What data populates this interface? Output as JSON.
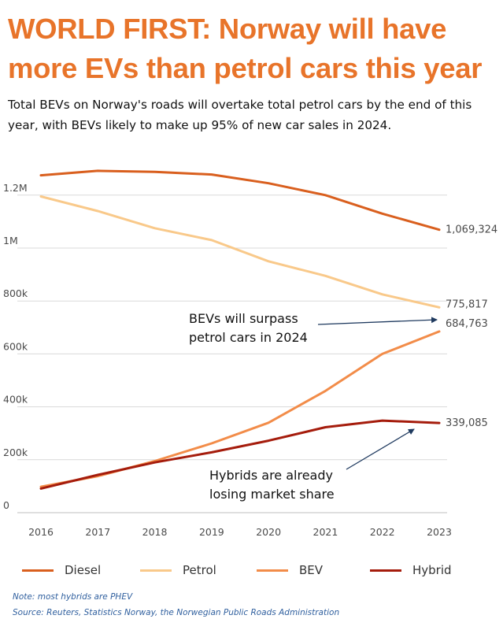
{
  "title": "WORLD FIRST: Norway will have more EVs than petrol cars this year",
  "subtitle": "Total BEVs on Norway's roads will overtake total petrol cars by the end of this year, with BEVs likely to make up 95% of new car sales in 2024.",
  "chart_data": {
    "type": "line",
    "x": [
      "2016",
      "2017",
      "2018",
      "2019",
      "2020",
      "2021",
      "2022",
      "2023"
    ],
    "series": [
      {
        "name": "Diesel",
        "color": "#D95F1E",
        "values": [
          1275000,
          1292000,
          1288000,
          1278000,
          1245000,
          1200000,
          1130000,
          1069324
        ],
        "end_label": "1,069,324"
      },
      {
        "name": "Petrol",
        "color": "#F9C98A",
        "values": [
          1195000,
          1140000,
          1075000,
          1030000,
          950000,
          895000,
          825000,
          775817
        ],
        "end_label": "775,817"
      },
      {
        "name": "BEV",
        "color": "#F28C49",
        "values": [
          98000,
          138000,
          195000,
          262000,
          340000,
          460000,
          600000,
          684763
        ],
        "end_label": "684,763"
      },
      {
        "name": "Hybrid",
        "color": "#A51C0C",
        "values": [
          91000,
          143000,
          190000,
          228000,
          272000,
          323000,
          348000,
          339085
        ],
        "end_label": "339,085"
      }
    ],
    "ylim": [
      0,
      1300000
    ],
    "yticks": [
      {
        "value": 0,
        "label": "0"
      },
      {
        "value": 200000,
        "label": "200k"
      },
      {
        "value": 400000,
        "label": "400k"
      },
      {
        "value": 600000,
        "label": "600k"
      },
      {
        "value": 800000,
        "label": "800k"
      },
      {
        "value": 1000000,
        "label": "1M"
      },
      {
        "value": 1200000,
        "label": "1.2M"
      }
    ],
    "grid": true,
    "legend": "bottom",
    "annotations": [
      {
        "text_lines": [
          "BEVs will surpass",
          "petrol cars in 2024"
        ],
        "points_to": {
          "x": "2023",
          "y": 745000
        }
      },
      {
        "text_lines": [
          "Hybrids are already",
          "losing market share"
        ],
        "points_to": {
          "x": "2022",
          "y": 318000
        }
      }
    ]
  },
  "notes": {
    "note": "Note: most hybrids are PHEV",
    "source": "Source: Reuters, Statistics Norway, the Norwegian Public Roads Administration"
  }
}
